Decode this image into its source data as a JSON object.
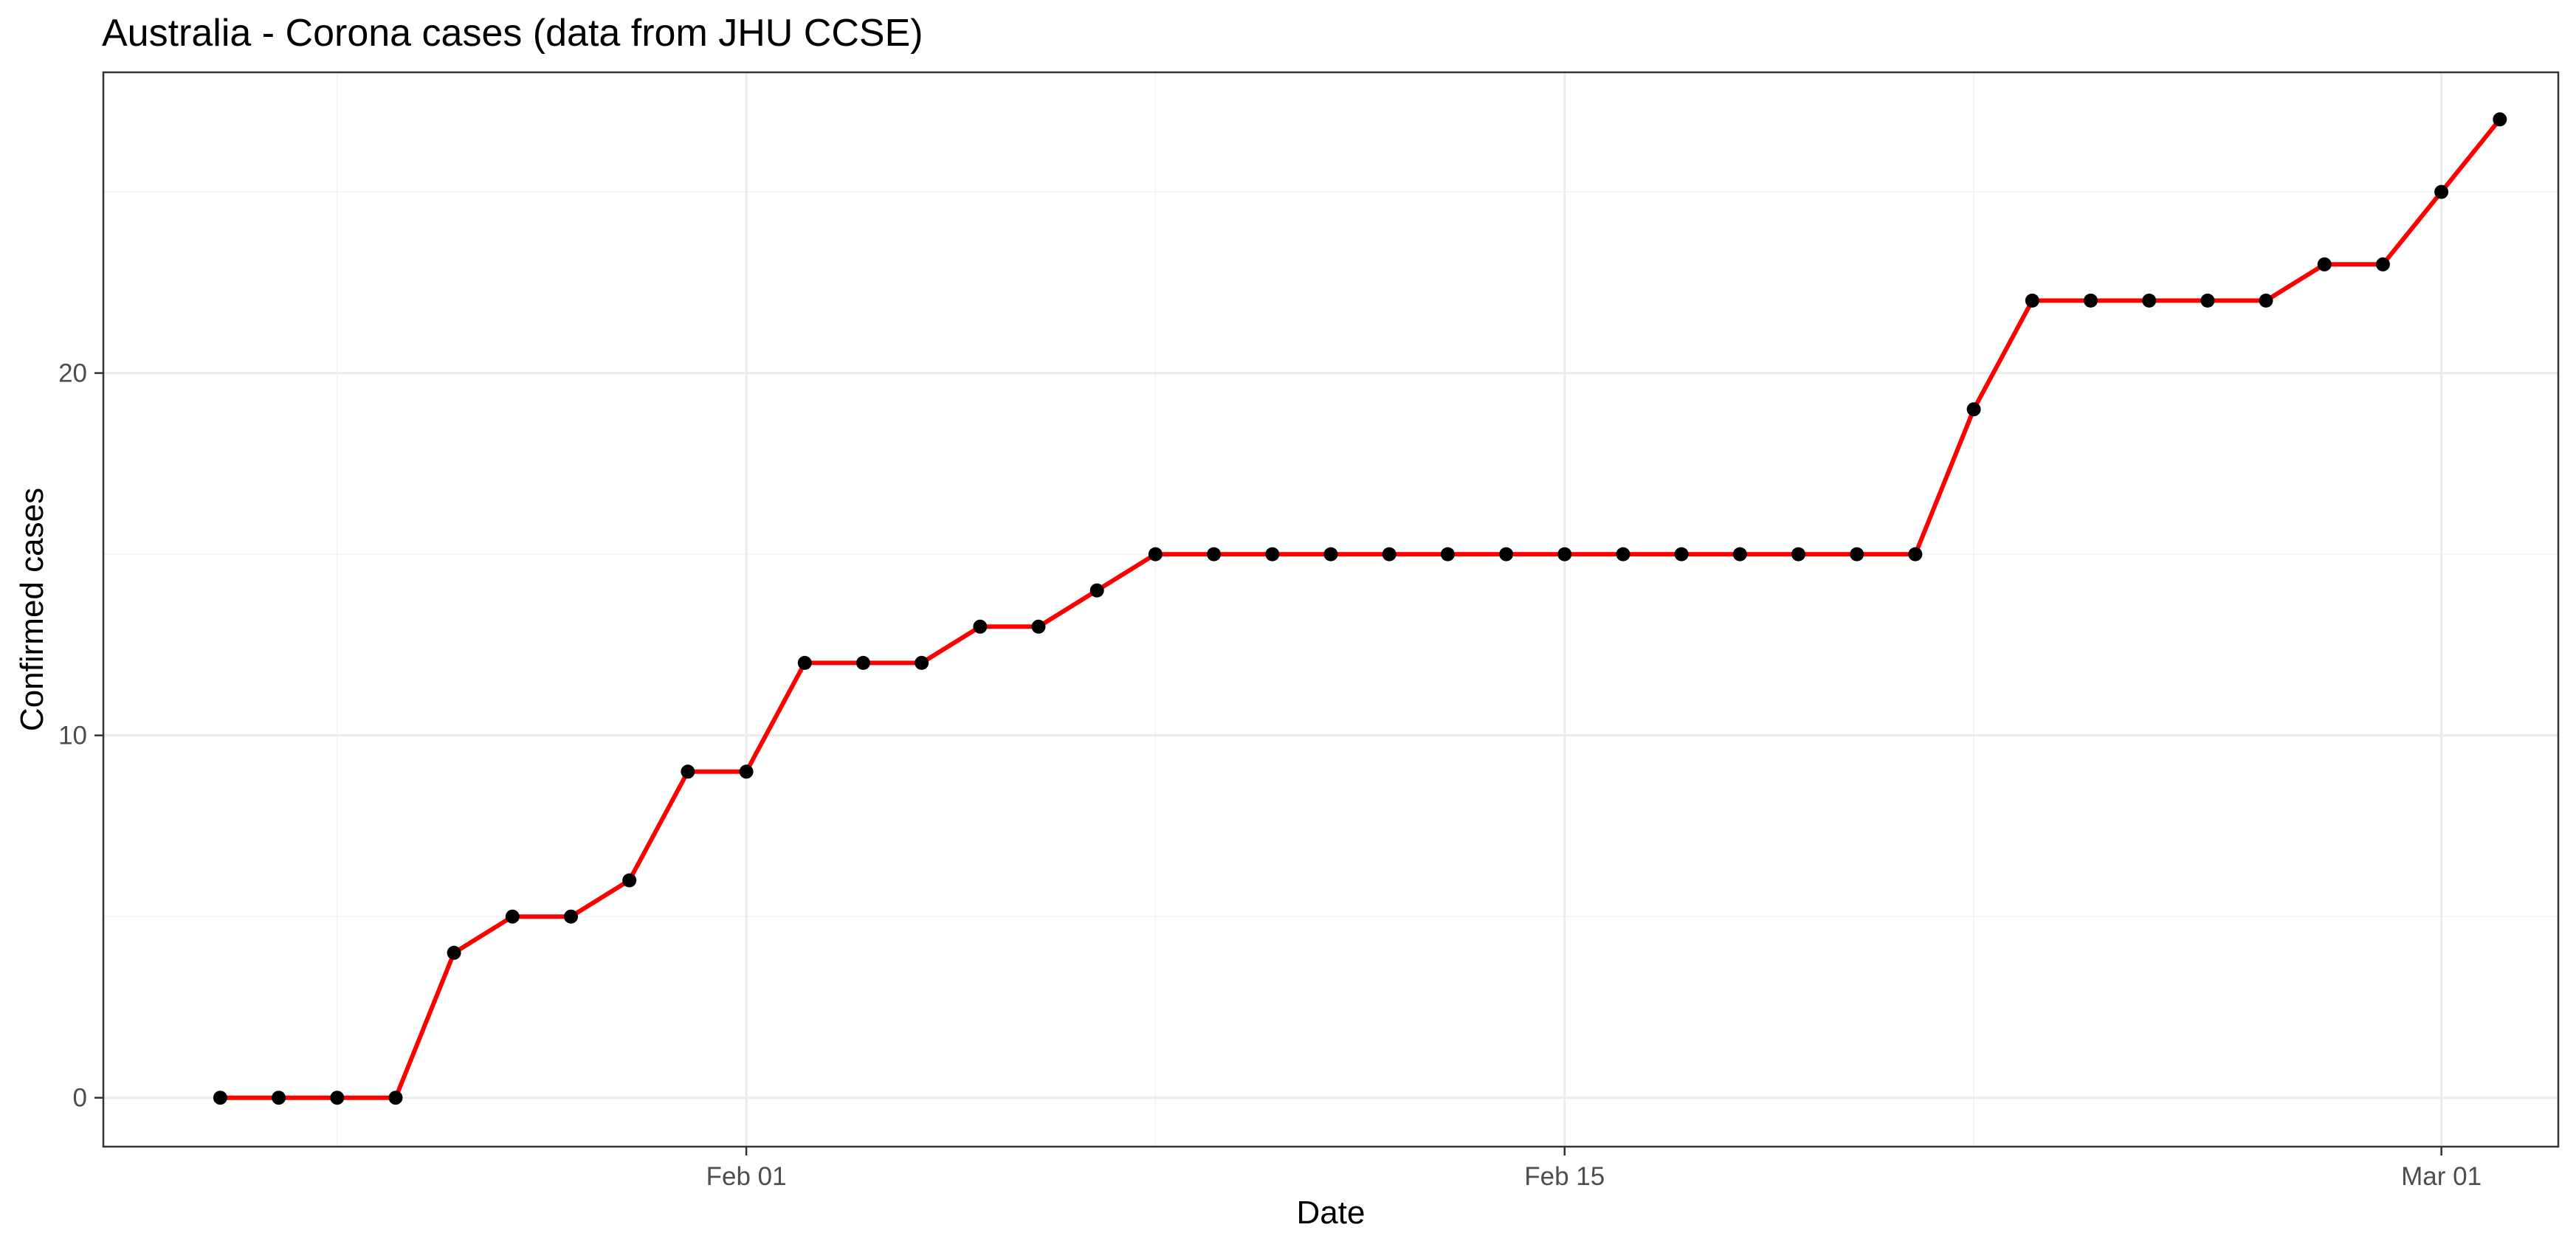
{
  "chart_data": {
    "type": "line",
    "title": "Australia - Corona cases (data from JHU CCSE)",
    "xlabel": "Date",
    "ylabel": "Confirmed cases",
    "x_start_day_offset": -9,
    "x_end_day_offset": 29,
    "xlim_day_offset": [
      -11,
      31
    ],
    "ylim": [
      -1.35,
      28.3
    ],
    "grid": true,
    "line_color": "#ff0000",
    "point_color": "#000000",
    "x_ticks": [
      {
        "label": "Feb 01",
        "day_offset": 0
      },
      {
        "label": "Feb 15",
        "day_offset": 14
      },
      {
        "label": "Mar 01",
        "day_offset": 29
      }
    ],
    "x_minor_ticks": [
      -7,
      7,
      21
    ],
    "y_ticks": [
      {
        "label": "0",
        "value": 0
      },
      {
        "label": "10",
        "value": 10
      },
      {
        "label": "20",
        "value": 20
      }
    ],
    "y_minor_ticks": [
      5,
      15,
      25
    ],
    "series": [
      {
        "name": "Confirmed cases",
        "values": [
          0,
          0,
          0,
          0,
          4,
          5,
          5,
          6,
          9,
          9,
          12,
          12,
          12,
          13,
          13,
          14,
          15,
          15,
          15,
          15,
          15,
          15,
          15,
          15,
          15,
          15,
          15,
          15,
          15,
          15,
          19,
          22,
          22,
          22,
          22,
          22,
          23,
          23,
          25,
          27
        ]
      }
    ]
  }
}
